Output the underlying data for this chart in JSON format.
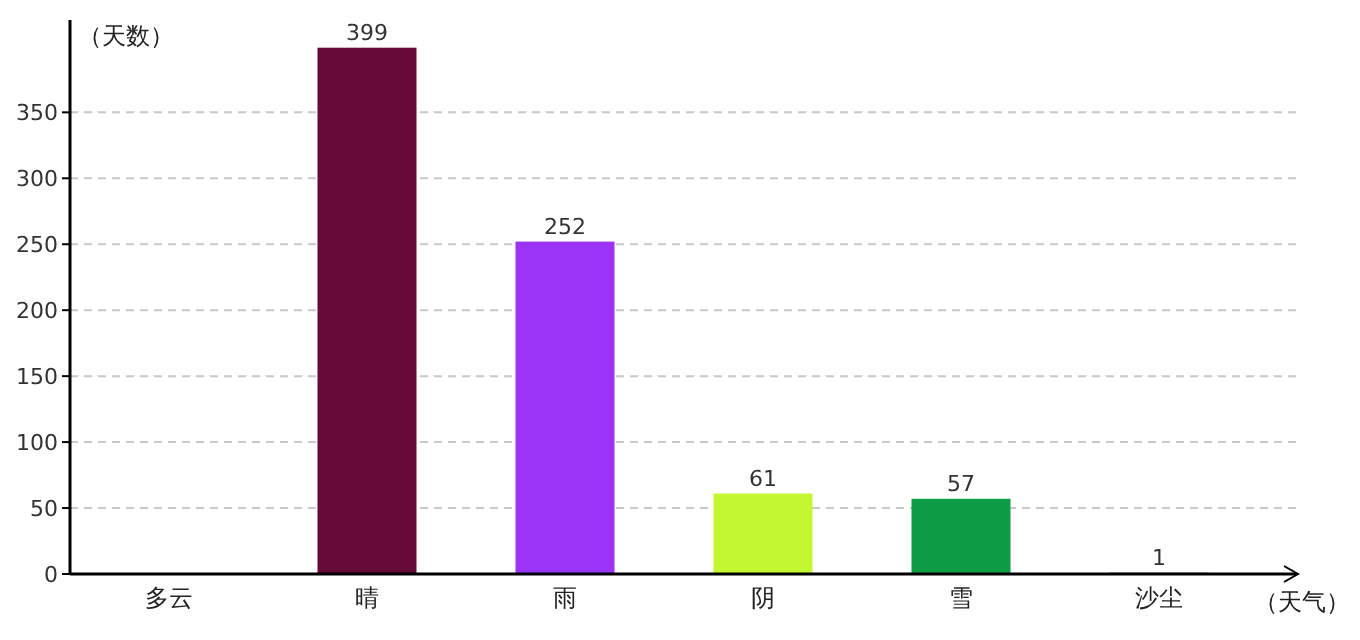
{
  "chart_data": {
    "type": "bar",
    "xlabel": "（天气）",
    "ylabel": "（天数）",
    "categories": [
      "多云",
      "晴",
      "雨",
      "阴",
      "雪",
      "沙尘"
    ],
    "values": [
      null,
      399,
      252,
      61,
      57,
      1
    ],
    "colors": [
      null,
      "#660a37",
      "#9b33f5",
      "#c3f731",
      "#0d9c45",
      "#6b2a7a"
    ],
    "ylim": [
      0,
      420
    ],
    "yticks": [
      0,
      50,
      100,
      150,
      200,
      250,
      300,
      350
    ],
    "grid": "y",
    "data_labels": true
  }
}
